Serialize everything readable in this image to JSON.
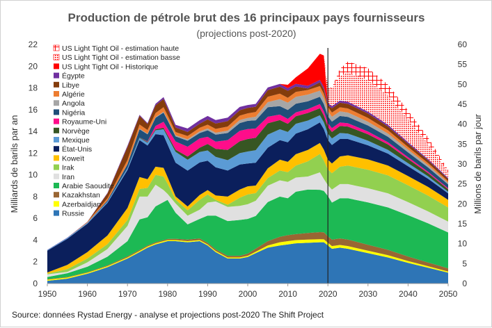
{
  "chart_data": {
    "type": "area",
    "title": "Production de pétrole brut des 16 principaux pays fournisseurs",
    "subtitle": "(projections post-2020)",
    "ylabel": "Milliards de barils par an",
    "y2label": "Millions de barils par jour",
    "ylim": [
      0,
      22
    ],
    "y2lim": [
      0,
      60
    ],
    "xlim": [
      1950,
      2050
    ],
    "x_ticks": [
      "1950",
      "1960",
      "1970",
      "1980",
      "1990",
      "2000",
      "2010",
      "2020",
      "2030",
      "2040",
      "2050"
    ],
    "y_ticks": [
      "0",
      "2",
      "4",
      "6",
      "8",
      "10",
      "12",
      "14",
      "16",
      "18",
      "20",
      "22"
    ],
    "y2_ticks": [
      "0",
      "5",
      "10",
      "15",
      "20",
      "25",
      "30",
      "35",
      "40",
      "45",
      "50",
      "55",
      "60"
    ],
    "vline_year": 2020,
    "source": "Source: données Rystad Energy - analyse et projections post-2020  The Shift Project",
    "x": [
      1950,
      1955,
      1960,
      1965,
      1970,
      1973,
      1975,
      1977,
      1979,
      1980,
      1982,
      1985,
      1988,
      1990,
      1992,
      1995,
      1998,
      2000,
      2002,
      2005,
      2008,
      2010,
      2012,
      2015,
      2018,
      2019,
      2020,
      2021,
      2023,
      2025,
      2030,
      2035,
      2040,
      2045,
      2050
    ],
    "series": [
      {
        "name": "Russie",
        "color": "#2E75B6",
        "values": [
          0.25,
          0.45,
          0.9,
          1.5,
          2.3,
          2.9,
          3.3,
          3.6,
          3.8,
          3.9,
          3.9,
          3.8,
          3.9,
          3.5,
          2.9,
          2.3,
          2.3,
          2.45,
          2.8,
          3.3,
          3.5,
          3.6,
          3.7,
          3.75,
          3.8,
          3.8,
          3.5,
          3.2,
          3.3,
          3.2,
          2.8,
          2.4,
          1.9,
          1.45,
          1.0
        ]
      },
      {
        "name": "Azerbaïdjan",
        "color": "#FFFF00",
        "values": [
          0.1,
          0.1,
          0.1,
          0.1,
          0.1,
          0.1,
          0.1,
          0.1,
          0.1,
          0.1,
          0.1,
          0.1,
          0.1,
          0.1,
          0.1,
          0.1,
          0.1,
          0.1,
          0.12,
          0.2,
          0.3,
          0.3,
          0.3,
          0.3,
          0.28,
          0.27,
          0.25,
          0.25,
          0.25,
          0.25,
          0.22,
          0.2,
          0.17,
          0.14,
          0.1
        ]
      },
      {
        "name": "Kazakhstan",
        "color": "#996633",
        "values": [
          0.05,
          0.05,
          0.05,
          0.07,
          0.1,
          0.1,
          0.1,
          0.1,
          0.1,
          0.1,
          0.12,
          0.14,
          0.15,
          0.15,
          0.15,
          0.15,
          0.15,
          0.2,
          0.3,
          0.4,
          0.5,
          0.55,
          0.55,
          0.6,
          0.65,
          0.65,
          0.6,
          0.6,
          0.6,
          0.6,
          0.55,
          0.5,
          0.42,
          0.35,
          0.3
        ]
      },
      {
        "name": "Arabie Saoudite",
        "color": "#1DB954",
        "values": [
          0.2,
          0.35,
          0.5,
          0.8,
          1.4,
          2.8,
          2.6,
          3.3,
          3.5,
          3.6,
          2.4,
          1.4,
          1.8,
          2.5,
          3.1,
          3.2,
          3.3,
          3.2,
          3.0,
          3.6,
          3.7,
          3.4,
          3.9,
          4.0,
          3.9,
          3.8,
          3.7,
          3.4,
          3.7,
          3.8,
          3.9,
          3.9,
          3.8,
          3.6,
          3.3
        ]
      },
      {
        "name": "Iran",
        "color": "#E0E0E0",
        "values": [
          0.25,
          0.12,
          0.4,
          0.7,
          1.4,
          2.1,
          1.9,
          2.0,
          1.1,
          0.55,
          0.85,
          0.8,
          0.85,
          1.2,
          1.3,
          1.3,
          1.3,
          1.35,
          1.4,
          1.5,
          1.5,
          1.5,
          1.3,
          1.2,
          1.6,
          1.1,
          1.0,
          1.2,
          1.3,
          1.3,
          1.3,
          1.3,
          1.2,
          1.1,
          1.0
        ]
      },
      {
        "name": "Irak",
        "color": "#92D050",
        "values": [
          0.05,
          0.25,
          0.35,
          0.45,
          0.55,
          0.7,
          0.8,
          0.9,
          1.25,
          0.95,
          0.35,
          0.5,
          0.9,
          0.75,
          0.15,
          0.2,
          0.75,
          0.9,
          0.7,
          0.7,
          0.9,
          0.9,
          1.1,
          1.4,
          1.7,
          1.7,
          1.45,
          1.5,
          1.6,
          1.7,
          1.7,
          1.65,
          1.55,
          1.45,
          1.3
        ]
      },
      {
        "name": "Koweït",
        "color": "#FFC000",
        "values": [
          0.12,
          0.4,
          0.6,
          0.8,
          1.1,
          1.1,
          0.8,
          0.75,
          0.8,
          0.6,
          0.3,
          0.35,
          0.45,
          0.4,
          0.4,
          0.75,
          0.75,
          0.75,
          0.7,
          0.9,
          1.0,
          0.95,
          1.05,
          1.05,
          1.0,
          1.0,
          0.9,
          0.9,
          0.95,
          0.95,
          0.95,
          0.9,
          0.85,
          0.8,
          0.7
        ]
      },
      {
        "name": "État-Unis",
        "color": "#0B1F5C",
        "values": [
          2.0,
          2.4,
          2.6,
          3.0,
          3.5,
          3.4,
          3.1,
          3.0,
          3.0,
          3.0,
          3.1,
          3.3,
          3.0,
          2.7,
          2.6,
          2.4,
          2.3,
          2.1,
          2.1,
          1.9,
          1.8,
          1.8,
          1.9,
          1.9,
          1.9,
          1.9,
          1.8,
          1.7,
          1.6,
          1.5,
          1.3,
          1.1,
          0.9,
          0.75,
          0.6
        ]
      },
      {
        "name": "Mexique",
        "color": "#5B9BD5",
        "values": [
          0.07,
          0.09,
          0.1,
          0.12,
          0.18,
          0.2,
          0.26,
          0.35,
          0.55,
          0.7,
          1.0,
          1.0,
          0.95,
          0.95,
          0.95,
          0.95,
          1.05,
          1.1,
          1.15,
          1.2,
          1.0,
          0.95,
          0.9,
          0.8,
          0.65,
          0.62,
          0.6,
          0.6,
          0.55,
          0.5,
          0.42,
          0.35,
          0.28,
          0.22,
          0.15
        ]
      },
      {
        "name": "Norvège",
        "color": "#375623",
        "values": [
          0.0,
          0.0,
          0.0,
          0.0,
          0.0,
          0.05,
          0.07,
          0.1,
          0.13,
          0.18,
          0.2,
          0.3,
          0.4,
          0.6,
          0.75,
          0.95,
          1.1,
          1.15,
          1.15,
          1.05,
          0.85,
          0.75,
          0.7,
          0.7,
          0.65,
          0.62,
          0.6,
          0.6,
          0.65,
          0.65,
          0.6,
          0.5,
          0.4,
          0.3,
          0.22
        ]
      },
      {
        "name": "Royaume-Uni",
        "color": "#FF0D8A",
        "values": [
          0.0,
          0.0,
          0.0,
          0.0,
          0.0,
          0.0,
          0.05,
          0.3,
          0.55,
          0.6,
          0.75,
          0.9,
          0.85,
          0.65,
          0.65,
          0.9,
          0.95,
          0.92,
          0.85,
          0.6,
          0.5,
          0.45,
          0.35,
          0.35,
          0.38,
          0.38,
          0.37,
          0.35,
          0.32,
          0.3,
          0.25,
          0.2,
          0.15,
          0.12,
          0.1
        ]
      },
      {
        "name": "Nigéria",
        "color": "#1F4E79",
        "values": [
          0.0,
          0.0,
          0.0,
          0.1,
          0.35,
          0.75,
          0.65,
          0.75,
          0.85,
          0.75,
          0.47,
          0.55,
          0.5,
          0.6,
          0.65,
          0.65,
          0.72,
          0.75,
          0.75,
          0.88,
          0.78,
          0.82,
          0.8,
          0.72,
          0.68,
          0.68,
          0.62,
          0.6,
          0.6,
          0.58,
          0.55,
          0.5,
          0.45,
          0.4,
          0.35
        ]
      },
      {
        "name": "Angola",
        "color": "#A6A6A6",
        "values": [
          0.0,
          0.0,
          0.0,
          0.0,
          0.04,
          0.06,
          0.05,
          0.06,
          0.08,
          0.08,
          0.1,
          0.13,
          0.15,
          0.17,
          0.18,
          0.22,
          0.28,
          0.27,
          0.33,
          0.46,
          0.64,
          0.67,
          0.63,
          0.62,
          0.56,
          0.54,
          0.48,
          0.45,
          0.42,
          0.4,
          0.35,
          0.3,
          0.25,
          0.2,
          0.15
        ]
      },
      {
        "name": "Algérie",
        "color": "#ED7D31",
        "values": [
          0.0,
          0.0,
          0.07,
          0.2,
          0.35,
          0.38,
          0.35,
          0.38,
          0.42,
          0.37,
          0.3,
          0.3,
          0.33,
          0.35,
          0.35,
          0.38,
          0.4,
          0.42,
          0.44,
          0.5,
          0.5,
          0.45,
          0.45,
          0.42,
          0.42,
          0.4,
          0.38,
          0.38,
          0.38,
          0.38,
          0.35,
          0.3,
          0.25,
          0.2,
          0.15
        ]
      },
      {
        "name": "Libye",
        "color": "#843C0C",
        "values": [
          0.0,
          0.0,
          0.0,
          0.45,
          1.2,
          0.8,
          0.55,
          0.7,
          0.75,
          0.62,
          0.42,
          0.38,
          0.38,
          0.48,
          0.5,
          0.5,
          0.5,
          0.5,
          0.48,
          0.6,
          0.65,
          0.65,
          0.5,
          0.15,
          0.35,
          0.4,
          0.15,
          0.4,
          0.42,
          0.42,
          0.4,
          0.35,
          0.3,
          0.25,
          0.2
        ]
      },
      {
        "name": "Égypte",
        "color": "#7030A0",
        "values": [
          0.01,
          0.02,
          0.02,
          0.05,
          0.12,
          0.08,
          0.09,
          0.15,
          0.18,
          0.22,
          0.25,
          0.32,
          0.32,
          0.32,
          0.32,
          0.32,
          0.3,
          0.27,
          0.26,
          0.25,
          0.25,
          0.25,
          0.25,
          0.24,
          0.22,
          0.22,
          0.2,
          0.2,
          0.2,
          0.2,
          0.18,
          0.16,
          0.14,
          0.12,
          0.1
        ]
      },
      {
        "name": "US Light Tight Oil - Historique",
        "color": "#FF0000",
        "values": [
          0,
          0,
          0,
          0,
          0,
          0,
          0,
          0,
          0,
          0,
          0,
          0,
          0,
          0,
          0,
          0,
          0,
          0,
          0,
          0,
          0,
          0.3,
          0.6,
          1.6,
          2.4,
          2.9,
          0,
          0,
          0,
          0,
          0,
          0,
          0,
          0,
          0
        ]
      },
      {
        "name": "US Light Tight Oil - estimation basse",
        "color": "#FF0000",
        "pattern": "dots",
        "values": [
          0,
          0,
          0,
          0,
          0,
          0,
          0,
          0,
          0,
          0,
          0,
          0,
          0,
          0,
          0,
          0,
          0,
          0,
          0,
          0,
          0,
          0,
          0,
          0,
          0,
          0,
          1.5,
          1.6,
          2.3,
          2.7,
          2.9,
          2.7,
          2.1,
          1.4,
          0.5
        ]
      },
      {
        "name": "US Light Tight Oil - estimation haute",
        "color": "#FF0000",
        "pattern": "grid",
        "values": [
          0,
          0,
          0,
          0,
          0,
          0,
          0,
          0,
          0,
          0,
          0,
          0,
          0,
          0,
          0,
          0,
          0,
          0,
          0,
          0,
          0,
          0,
          0,
          0,
          0,
          0,
          0,
          0.1,
          0.6,
          1.0,
          1.1,
          1.0,
          0.8,
          0.6,
          0.2
        ]
      }
    ]
  }
}
